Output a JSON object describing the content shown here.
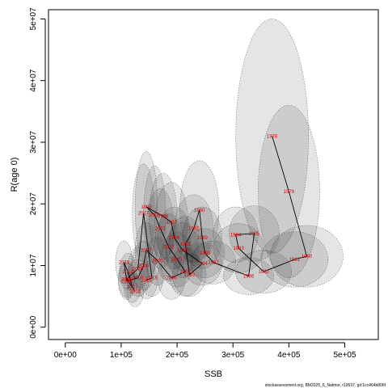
{
  "chart_data": {
    "type": "scatter",
    "title": "",
    "xlabel": "SSB",
    "ylabel": "R(age 0)",
    "xlim": [
      -30000,
      560000
    ],
    "ylim": [
      -2000000,
      51500000
    ],
    "x_ticks": [
      0,
      100000,
      200000,
      300000,
      400000,
      500000
    ],
    "x_tick_labels": [
      "0e+00",
      "1e+05",
      "2e+05",
      "3e+05",
      "4e+05",
      "5e+05"
    ],
    "y_ticks": [
      0,
      10000000,
      20000000,
      30000000,
      40000000,
      50000000
    ],
    "y_tick_labels": [
      "0e+00",
      "1e+07",
      "2e+07",
      "3e+07",
      "4e+07",
      "5e+07"
    ],
    "path_connected": true,
    "uncertainty_ellipses": true,
    "points": [
      {
        "year": "1978",
        "ssb": 370000,
        "r": 31000000,
        "ssb_sd": 65000,
        "r_sd": 19000000
      },
      {
        "year": "1979",
        "ssb": 400000,
        "r": 22000000,
        "ssb_sd": 55000,
        "r_sd": 14000000
      },
      {
        "year": "1980",
        "ssb": 432000,
        "r": 11500000,
        "ssb_sd": 65000,
        "r_sd": 5000000
      },
      {
        "year": "1981",
        "ssb": 410000,
        "r": 11000000,
        "ssb_sd": 60000,
        "r_sd": 4500000
      },
      {
        "year": "1982",
        "ssb": 355000,
        "r": 9000000,
        "ssb_sd": 50000,
        "r_sd": 3500000
      },
      {
        "year": "1983",
        "ssb": 310000,
        "r": 12800000,
        "ssb_sd": 45000,
        "r_sd": 4000000
      },
      {
        "year": "1984",
        "ssb": 305000,
        "r": 15000000,
        "ssb_sd": 40000,
        "r_sd": 4500000
      },
      {
        "year": "1985",
        "ssb": 338000,
        "r": 15200000,
        "ssb_sd": 45000,
        "r_sd": 4500000
      },
      {
        "year": "1986",
        "ssb": 328000,
        "r": 8300000,
        "ssb_sd": 45000,
        "r_sd": 3000000
      },
      {
        "year": "1987",
        "ssb": 265000,
        "r": 10500000,
        "ssb_sd": 40000,
        "r_sd": 3500000
      },
      {
        "year": "1988",
        "ssb": 250000,
        "r": 12000000,
        "ssb_sd": 35000,
        "r_sd": 4000000
      },
      {
        "year": "1989",
        "ssb": 245000,
        "r": 14500000,
        "ssb_sd": 35000,
        "r_sd": 5000000
      },
      {
        "year": "1990",
        "ssb": 240000,
        "r": 19000000,
        "ssb_sd": 35000,
        "r_sd": 8000000
      },
      {
        "year": "1991",
        "ssb": 230000,
        "r": 16000000,
        "ssb_sd": 35000,
        "r_sd": 5500000
      },
      {
        "year": "1992",
        "ssb": 215000,
        "r": 13500000,
        "ssb_sd": 30000,
        "r_sd": 4500000
      },
      {
        "year": "1993",
        "ssb": 222000,
        "r": 8500000,
        "ssb_sd": 30000,
        "r_sd": 3500000
      },
      {
        "year": "1994",
        "ssb": 245000,
        "r": 10300000,
        "ssb_sd": 35000,
        "r_sd": 3500000
      },
      {
        "year": "1995",
        "ssb": 210000,
        "r": 12500000,
        "ssb_sd": 30000,
        "r_sd": 4500000
      },
      {
        "year": "1996",
        "ssb": 195000,
        "r": 14500000,
        "ssb_sd": 30000,
        "r_sd": 5000000
      },
      {
        "year": "1997",
        "ssb": 190000,
        "r": 17000000,
        "ssb_sd": 30000,
        "r_sd": 6500000
      },
      {
        "year": "1998",
        "ssb": 175000,
        "r": 18000000,
        "ssb_sd": 25000,
        "r_sd": 7000000
      },
      {
        "year": "1999",
        "ssb": 145000,
        "r": 19500000,
        "ssb_sd": 20000,
        "r_sd": 9000000
      },
      {
        "year": "2000",
        "ssb": 160000,
        "r": 18200000,
        "ssb_sd": 20000,
        "r_sd": 8000000
      },
      {
        "year": "2001",
        "ssb": 170000,
        "r": 16000000,
        "ssb_sd": 25000,
        "r_sd": 6500000
      },
      {
        "year": "2002",
        "ssb": 185000,
        "r": 13000000,
        "ssb_sd": 25000,
        "r_sd": 5500000
      },
      {
        "year": "2003",
        "ssb": 200000,
        "r": 11000000,
        "ssb_sd": 30000,
        "r_sd": 4500000
      },
      {
        "year": "2004",
        "ssb": 215000,
        "r": 9000000,
        "ssb_sd": 30000,
        "r_sd": 4000000
      },
      {
        "year": "2005",
        "ssb": 190000,
        "r": 8000000,
        "ssb_sd": 25000,
        "r_sd": 3500000
      },
      {
        "year": "2006",
        "ssb": 165000,
        "r": 10800000,
        "ssb_sd": 20000,
        "r_sd": 4000000
      },
      {
        "year": "2007",
        "ssb": 145000,
        "r": 12500000,
        "ssb_sd": 20000,
        "r_sd": 4500000
      },
      {
        "year": "2008",
        "ssb": 140000,
        "r": 10000000,
        "ssb_sd": 20000,
        "r_sd": 4000000
      },
      {
        "year": "2009",
        "ssb": 130000,
        "r": 8000000,
        "ssb_sd": 20000,
        "r_sd": 3000000
      },
      {
        "year": "2010",
        "ssb": 110000,
        "r": 7500000,
        "ssb_sd": 15000,
        "r_sd": 3000000
      },
      {
        "year": "2011",
        "ssb": 105000,
        "r": 10500000,
        "ssb_sd": 15000,
        "r_sd": 3500000
      },
      {
        "year": "2012",
        "ssb": 112000,
        "r": 9000000,
        "ssb_sd": 15000,
        "r_sd": 3000000
      },
      {
        "year": "2013",
        "ssb": 120000,
        "r": 6500000,
        "ssb_sd": 15000,
        "r_sd": 2500000
      },
      {
        "year": "2014",
        "ssb": 125000,
        "r": 5800000,
        "ssb_sd": 15000,
        "r_sd": 2500000
      },
      {
        "year": "2015",
        "ssb": 110000,
        "r": 7800000,
        "ssb_sd": 15000,
        "r_sd": 3000000
      },
      {
        "year": "2016",
        "ssb": 130000,
        "r": 9500000,
        "ssb_sd": 18000,
        "r_sd": 3500000
      },
      {
        "year": "2017",
        "ssb": 140000,
        "r": 18500000,
        "ssb_sd": 20000,
        "r_sd": 8000000
      },
      {
        "year": "2018",
        "ssb": 155000,
        "r": 8000000,
        "ssb_sd": 20000,
        "r_sd": 3000000
      },
      {
        "year": "2019",
        "ssb": 145000,
        "r": 7600000,
        "ssb_sd": 20000,
        "r_sd": 3000000
      }
    ]
  },
  "footer": {
    "source": "stockassessment.org, BM2025_6_Natmor, r19537, git:1cc464b806f"
  }
}
